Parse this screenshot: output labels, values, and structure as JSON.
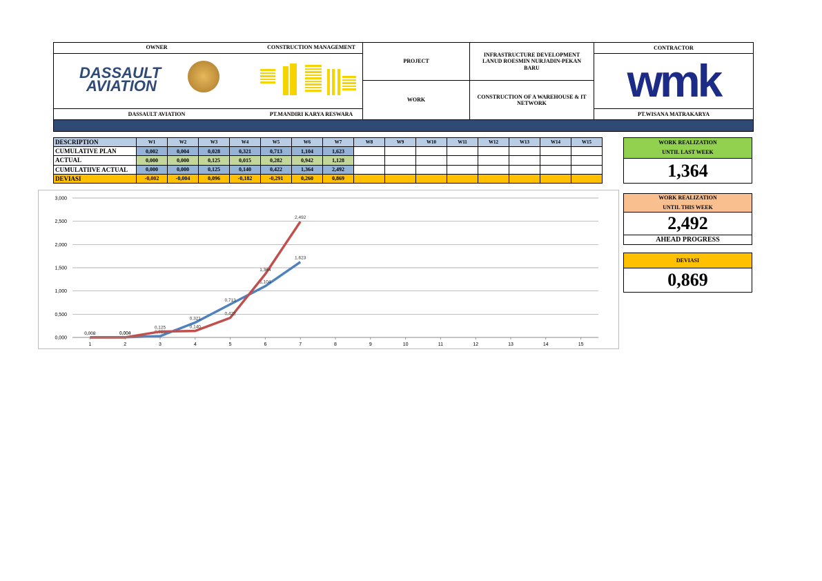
{
  "header": {
    "owner_label": "OWNER",
    "cm_label": "CONSTRUCTION MANAGEMENT",
    "project_label": "PROJECT",
    "project": "INFRASTRUCTURE DEVELOPMENT LANUD ROESMIN NURJADIN-PEKAN BARU",
    "work_label": "WORK",
    "work": "CONSTRUCTION OF A WAREHOUSE & IT NETWORK",
    "contractor_label": "CONTRACTOR",
    "owner": "DASSAULT AVIATION",
    "cm": "PT.MANDIRI KARYA RESWARA",
    "contractor": "PT.WISANA MATRAKARYA",
    "owner_logo": [
      "DASSAULT",
      "AVIATION"
    ],
    "contractor_logo": "wmk"
  },
  "table": {
    "header": [
      "DESCRIPTION",
      "W1",
      "W2",
      "W3",
      "W4",
      "W5",
      "W6",
      "W7",
      "W8",
      "W9",
      "W10",
      "W11",
      "W12",
      "W13",
      "W14",
      "W15"
    ],
    "rows": [
      [
        "CUMULATIVE PLAN",
        "0,002",
        "0,004",
        "0,028",
        "0,321",
        "0,713",
        "1,104",
        "1,623"
      ],
      [
        "ACTUAL",
        "0,000",
        "0,000",
        "0,125",
        "0,015",
        "0,282",
        "0,942",
        "1,128"
      ],
      [
        "CUMULATIIVE ACTUAL",
        "0,000",
        "0,000",
        "0,125",
        "0,140",
        "0,422",
        "1,364",
        "2,492"
      ],
      [
        "DEVIASI",
        "-0,002",
        "-0,004",
        "0,096",
        "-0,182",
        "-0,291",
        "0,260",
        "0,869"
      ]
    ]
  },
  "summary": {
    "last_week_label": [
      "WORK REALIZATION",
      "UNTIL LAST WEEK"
    ],
    "last_week": "1,364",
    "this_week_label": [
      "WORK REALIZATION",
      "UNTIL THIS WEEK"
    ],
    "this_week": "2,492",
    "status": "AHEAD PROGRESS",
    "deviation_label": "DEVIASI",
    "deviation": "0,869"
  },
  "chart_data": {
    "type": "line",
    "x": [
      1,
      2,
      3,
      4,
      5,
      6,
      7,
      8,
      9,
      10,
      11,
      12,
      13,
      14,
      15
    ],
    "xlim": [
      0.5,
      15.5
    ],
    "xticks": [
      1,
      2,
      3,
      4,
      5,
      6,
      7,
      8,
      9,
      10,
      11,
      12,
      13,
      14,
      15
    ],
    "ylim": [
      0,
      3
    ],
    "yticks": [
      {
        "value": 0,
        "label": "0,000"
      },
      {
        "value": 0.5,
        "label": "0,500"
      },
      {
        "value": 1,
        "label": "1,000"
      },
      {
        "value": 1.5,
        "label": "1,500"
      },
      {
        "value": 2,
        "label": "2,000"
      },
      {
        "value": 2.5,
        "label": "2,500"
      },
      {
        "value": 3,
        "label": "3,000"
      }
    ],
    "grid": true,
    "series": [
      {
        "color": "#4f81bd",
        "values": [
          0.002,
          0.004,
          0.028,
          0.321,
          0.713,
          1.104,
          1.623,
          null,
          null,
          null,
          null,
          null,
          null,
          null,
          null
        ],
        "value_labels": [
          "0,002",
          "0,004",
          "0,028",
          "0,321",
          "0,713",
          "1,104",
          "1,623",
          null,
          null,
          null,
          null,
          null,
          null,
          null,
          null
        ]
      },
      {
        "color": "#c0504d",
        "values": [
          0,
          0,
          0.125,
          0.14,
          0.422,
          1.364,
          2.492,
          null,
          null,
          null,
          null,
          null,
          null,
          null,
          null
        ],
        "value_labels": [
          "0,000",
          "0,000",
          "0,125",
          "0,140",
          "0,422",
          "1,364",
          "2,492",
          null,
          null,
          null,
          null,
          null,
          null,
          null,
          null
        ]
      }
    ]
  }
}
